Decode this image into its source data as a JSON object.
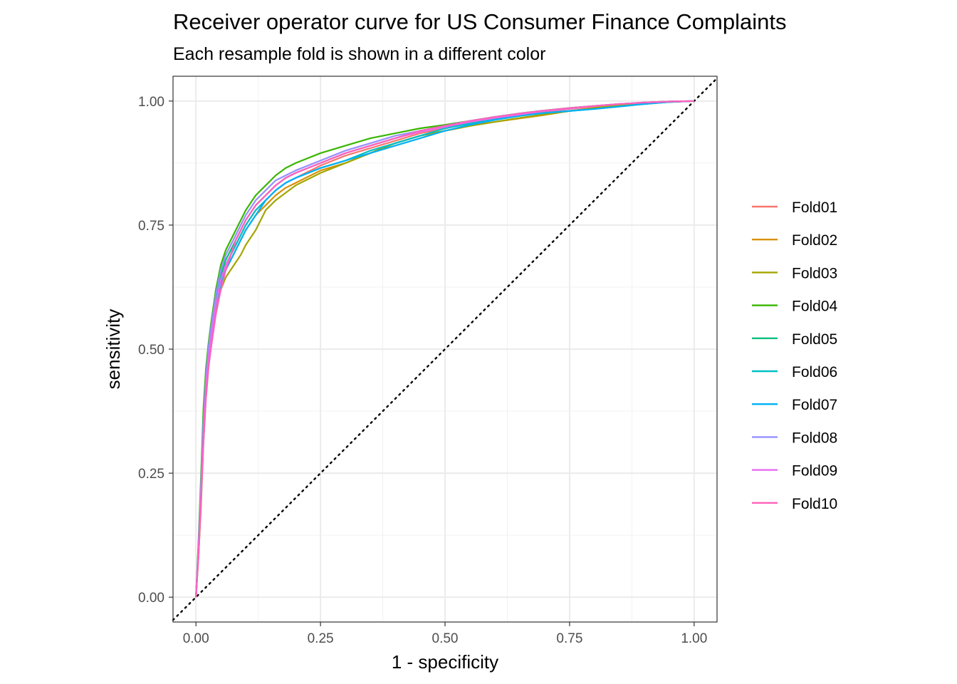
{
  "chart_data": {
    "type": "line",
    "title": "Receiver operator curve for US Consumer Finance Complaints",
    "subtitle": "Each resample fold is shown in a different color",
    "xlabel": "1 - specificity",
    "ylabel": "sensitivity",
    "xlim": [
      -0.046,
      1.046
    ],
    "ylim": [
      -0.05,
      1.05
    ],
    "x_ticks": [
      0,
      0.25,
      0.5,
      0.75,
      1
    ],
    "x_tick_labels": [
      "0.00",
      "0.25",
      "0.50",
      "0.75",
      "1.00"
    ],
    "y_ticks": [
      0,
      0.25,
      0.5,
      0.75,
      1
    ],
    "y_tick_labels": [
      "0.00",
      "0.25",
      "0.50",
      "0.75",
      "1.00"
    ],
    "grid": true,
    "legend_position": "right",
    "reference_line": {
      "style": "dotted",
      "color": "#000000",
      "x": [
        0,
        1
      ],
      "y": [
        0,
        1
      ]
    },
    "series": [
      {
        "name": "Fold01",
        "color": "#F8766D",
        "x": [
          0,
          0.005,
          0.01,
          0.015,
          0.02,
          0.025,
          0.03,
          0.04,
          0.05,
          0.06,
          0.07,
          0.08,
          0.09,
          0.1,
          0.12,
          0.14,
          0.16,
          0.18,
          0.2,
          0.25,
          0.3,
          0.35,
          0.4,
          0.45,
          0.5,
          0.55,
          0.6,
          0.65,
          0.7,
          0.75,
          0.8,
          0.85,
          0.9,
          0.95,
          1.0
        ],
        "y": [
          0,
          0.09,
          0.2,
          0.33,
          0.42,
          0.48,
          0.53,
          0.6,
          0.64,
          0.67,
          0.69,
          0.71,
          0.73,
          0.75,
          0.78,
          0.8,
          0.82,
          0.835,
          0.845,
          0.87,
          0.89,
          0.905,
          0.92,
          0.935,
          0.945,
          0.955,
          0.965,
          0.972,
          0.978,
          0.984,
          0.989,
          0.993,
          0.996,
          0.998,
          1.0
        ]
      },
      {
        "name": "Fold02",
        "color": "#D89000",
        "x": [
          0,
          0.005,
          0.01,
          0.015,
          0.02,
          0.025,
          0.03,
          0.04,
          0.05,
          0.06,
          0.07,
          0.08,
          0.09,
          0.1,
          0.12,
          0.14,
          0.16,
          0.18,
          0.2,
          0.25,
          0.3,
          0.35,
          0.4,
          0.45,
          0.5,
          0.55,
          0.6,
          0.65,
          0.7,
          0.75,
          0.8,
          0.85,
          0.9,
          0.95,
          1.0
        ],
        "y": [
          0,
          0.08,
          0.19,
          0.32,
          0.41,
          0.47,
          0.52,
          0.59,
          0.63,
          0.66,
          0.68,
          0.7,
          0.72,
          0.74,
          0.77,
          0.79,
          0.81,
          0.825,
          0.835,
          0.86,
          0.875,
          0.895,
          0.915,
          0.93,
          0.94,
          0.95,
          0.958,
          0.965,
          0.972,
          0.98,
          0.986,
          0.991,
          0.995,
          0.998,
          1.0
        ]
      },
      {
        "name": "Fold03",
        "color": "#A3A500",
        "x": [
          0,
          0.005,
          0.01,
          0.015,
          0.02,
          0.025,
          0.03,
          0.04,
          0.05,
          0.06,
          0.07,
          0.08,
          0.09,
          0.1,
          0.12,
          0.14,
          0.16,
          0.18,
          0.2,
          0.25,
          0.3,
          0.35,
          0.4,
          0.45,
          0.5,
          0.55,
          0.6,
          0.65,
          0.7,
          0.75,
          0.8,
          0.85,
          0.9,
          0.95,
          1.0
        ],
        "y": [
          0,
          0.08,
          0.18,
          0.31,
          0.4,
          0.46,
          0.51,
          0.58,
          0.62,
          0.645,
          0.66,
          0.675,
          0.69,
          0.71,
          0.74,
          0.78,
          0.8,
          0.815,
          0.83,
          0.855,
          0.875,
          0.895,
          0.915,
          0.93,
          0.94,
          0.95,
          0.958,
          0.966,
          0.973,
          0.98,
          0.986,
          0.991,
          0.995,
          0.998,
          1.0
        ]
      },
      {
        "name": "Fold04",
        "color": "#39B600",
        "x": [
          0,
          0.005,
          0.01,
          0.015,
          0.02,
          0.025,
          0.03,
          0.04,
          0.05,
          0.06,
          0.07,
          0.08,
          0.09,
          0.1,
          0.12,
          0.14,
          0.16,
          0.18,
          0.2,
          0.25,
          0.3,
          0.35,
          0.4,
          0.45,
          0.5,
          0.55,
          0.6,
          0.65,
          0.7,
          0.75,
          0.8,
          0.85,
          0.9,
          0.95,
          1.0
        ],
        "y": [
          0,
          0.11,
          0.24,
          0.38,
          0.46,
          0.51,
          0.55,
          0.62,
          0.67,
          0.7,
          0.72,
          0.74,
          0.76,
          0.78,
          0.81,
          0.83,
          0.85,
          0.865,
          0.875,
          0.895,
          0.91,
          0.925,
          0.935,
          0.945,
          0.952,
          0.96,
          0.968,
          0.975,
          0.981,
          0.986,
          0.99,
          0.994,
          0.997,
          0.999,
          1.0
        ]
      },
      {
        "name": "Fold05",
        "color": "#00BF7D",
        "x": [
          0,
          0.005,
          0.01,
          0.015,
          0.02,
          0.025,
          0.03,
          0.04,
          0.05,
          0.06,
          0.07,
          0.08,
          0.09,
          0.1,
          0.12,
          0.14,
          0.16,
          0.18,
          0.2,
          0.25,
          0.3,
          0.35,
          0.4,
          0.45,
          0.5,
          0.55,
          0.6,
          0.65,
          0.7,
          0.75,
          0.8,
          0.85,
          0.9,
          0.95,
          1.0
        ],
        "y": [
          0,
          0.1,
          0.22,
          0.36,
          0.44,
          0.5,
          0.54,
          0.61,
          0.65,
          0.68,
          0.7,
          0.72,
          0.74,
          0.76,
          0.79,
          0.81,
          0.83,
          0.845,
          0.855,
          0.875,
          0.895,
          0.91,
          0.925,
          0.94,
          0.95,
          0.96,
          0.968,
          0.975,
          0.981,
          0.986,
          0.99,
          0.994,
          0.997,
          0.999,
          1.0
        ]
      },
      {
        "name": "Fold06",
        "color": "#00BFC4",
        "x": [
          0,
          0.005,
          0.01,
          0.015,
          0.02,
          0.025,
          0.03,
          0.04,
          0.05,
          0.06,
          0.07,
          0.08,
          0.09,
          0.1,
          0.12,
          0.14,
          0.16,
          0.18,
          0.2,
          0.25,
          0.3,
          0.35,
          0.4,
          0.45,
          0.5,
          0.55,
          0.6,
          0.65,
          0.7,
          0.75,
          0.8,
          0.85,
          0.9,
          0.95,
          1.0
        ],
        "y": [
          0,
          0.09,
          0.21,
          0.34,
          0.43,
          0.49,
          0.53,
          0.6,
          0.64,
          0.67,
          0.69,
          0.71,
          0.73,
          0.75,
          0.78,
          0.8,
          0.82,
          0.835,
          0.845,
          0.865,
          0.88,
          0.9,
          0.915,
          0.93,
          0.945,
          0.955,
          0.963,
          0.971,
          0.976,
          0.98,
          0.984,
          0.989,
          0.994,
          0.998,
          1.0
        ]
      },
      {
        "name": "Fold07",
        "color": "#00B0F6",
        "x": [
          0,
          0.005,
          0.01,
          0.015,
          0.02,
          0.025,
          0.03,
          0.04,
          0.05,
          0.06,
          0.07,
          0.08,
          0.09,
          0.1,
          0.12,
          0.14,
          0.16,
          0.18,
          0.2,
          0.25,
          0.3,
          0.35,
          0.4,
          0.45,
          0.5,
          0.55,
          0.6,
          0.65,
          0.7,
          0.75,
          0.8,
          0.85,
          0.9,
          0.95,
          1.0
        ],
        "y": [
          0,
          0.09,
          0.2,
          0.33,
          0.42,
          0.48,
          0.52,
          0.59,
          0.63,
          0.66,
          0.68,
          0.7,
          0.72,
          0.74,
          0.77,
          0.8,
          0.82,
          0.835,
          0.845,
          0.865,
          0.88,
          0.895,
          0.91,
          0.925,
          0.94,
          0.952,
          0.962,
          0.97,
          0.976,
          0.98,
          0.984,
          0.989,
          0.994,
          0.998,
          1.0
        ]
      },
      {
        "name": "Fold08",
        "color": "#9590FF",
        "x": [
          0,
          0.005,
          0.01,
          0.015,
          0.02,
          0.025,
          0.03,
          0.04,
          0.05,
          0.06,
          0.07,
          0.08,
          0.09,
          0.1,
          0.12,
          0.14,
          0.16,
          0.18,
          0.2,
          0.25,
          0.3,
          0.35,
          0.4,
          0.45,
          0.5,
          0.55,
          0.6,
          0.65,
          0.7,
          0.75,
          0.8,
          0.85,
          0.9,
          0.95,
          1.0
        ],
        "y": [
          0,
          0.1,
          0.22,
          0.35,
          0.44,
          0.5,
          0.54,
          0.61,
          0.66,
          0.69,
          0.71,
          0.73,
          0.75,
          0.77,
          0.8,
          0.82,
          0.84,
          0.85,
          0.86,
          0.88,
          0.9,
          0.915,
          0.93,
          0.94,
          0.95,
          0.96,
          0.967,
          0.974,
          0.98,
          0.985,
          0.99,
          0.994,
          0.997,
          0.999,
          1.0
        ]
      },
      {
        "name": "Fold09",
        "color": "#E76BF3",
        "x": [
          0,
          0.005,
          0.01,
          0.015,
          0.02,
          0.025,
          0.03,
          0.04,
          0.05,
          0.06,
          0.07,
          0.08,
          0.09,
          0.1,
          0.12,
          0.14,
          0.16,
          0.18,
          0.2,
          0.25,
          0.3,
          0.35,
          0.4,
          0.45,
          0.5,
          0.55,
          0.6,
          0.65,
          0.7,
          0.75,
          0.8,
          0.85,
          0.9,
          0.95,
          1.0
        ],
        "y": [
          0,
          0.09,
          0.2,
          0.33,
          0.42,
          0.48,
          0.52,
          0.59,
          0.64,
          0.67,
          0.69,
          0.72,
          0.74,
          0.76,
          0.79,
          0.81,
          0.83,
          0.845,
          0.855,
          0.875,
          0.895,
          0.91,
          0.925,
          0.938,
          0.948,
          0.958,
          0.966,
          0.973,
          0.98,
          0.985,
          0.99,
          0.994,
          0.997,
          0.999,
          1.0
        ]
      },
      {
        "name": "Fold10",
        "color": "#FF62BC",
        "x": [
          0,
          0.005,
          0.01,
          0.015,
          0.02,
          0.025,
          0.03,
          0.04,
          0.05,
          0.06,
          0.07,
          0.08,
          0.09,
          0.1,
          0.12,
          0.14,
          0.16,
          0.18,
          0.2,
          0.25,
          0.3,
          0.35,
          0.4,
          0.45,
          0.5,
          0.55,
          0.6,
          0.65,
          0.7,
          0.75,
          0.8,
          0.85,
          0.9,
          0.95,
          1.0
        ],
        "y": [
          0,
          0.08,
          0.19,
          0.31,
          0.4,
          0.46,
          0.5,
          0.57,
          0.62,
          0.66,
          0.69,
          0.72,
          0.74,
          0.76,
          0.79,
          0.81,
          0.83,
          0.845,
          0.855,
          0.875,
          0.895,
          0.91,
          0.925,
          0.94,
          0.95,
          0.96,
          0.968,
          0.975,
          0.981,
          0.986,
          0.99,
          0.994,
          0.997,
          0.999,
          1.0
        ]
      }
    ]
  }
}
